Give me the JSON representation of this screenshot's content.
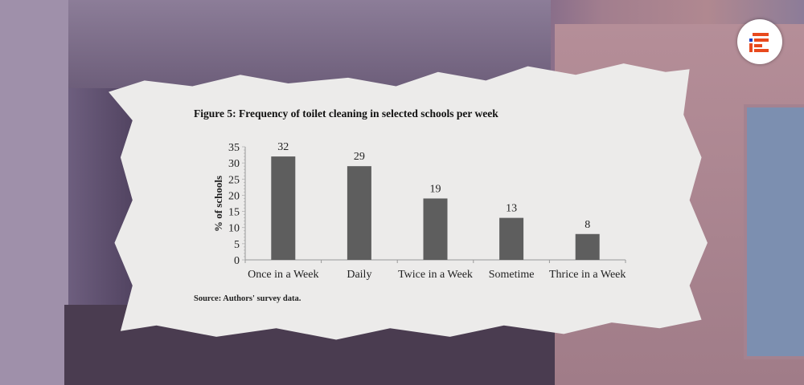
{
  "logo_text": "E",
  "colors": {
    "bar": "#5e5e5e",
    "logo_accent": "#e8491d",
    "logo_dot": "#1a3fc4",
    "paper": "#ecebea"
  },
  "chart_data": {
    "type": "bar",
    "title": "Figure 5: Frequency of toilet cleaning in selected schools per week",
    "xlabel": "",
    "ylabel": "% of schools",
    "categories": [
      "Once in a Week",
      "Daily",
      "Twice in a Week",
      "Sometime",
      "Thrice in a Week"
    ],
    "values": [
      32,
      29,
      19,
      13,
      8
    ],
    "data_labels": [
      "32",
      "29",
      "19",
      "13",
      "8"
    ],
    "ylim": [
      0,
      35
    ],
    "yticks": [
      0,
      5,
      10,
      15,
      20,
      25,
      30,
      35
    ],
    "grid": false,
    "source": "Source: Authors' survey data."
  }
}
